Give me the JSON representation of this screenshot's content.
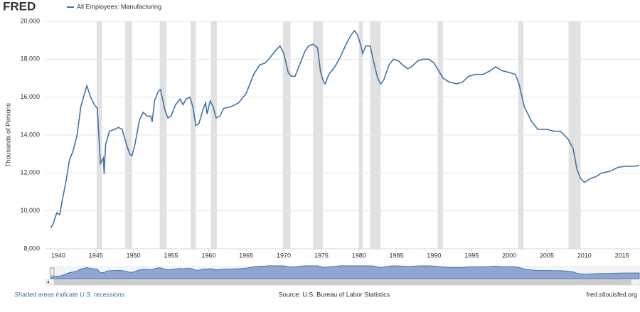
{
  "chart_data": {
    "type": "line",
    "brand": "FRED",
    "y_label": "Thousands of Persons",
    "note": "Shaded areas indicate U.S. recessions",
    "source": "Source: U.S. Bureau of Labor Statistics",
    "site": "fred.stlouisfed.org",
    "x": [
      1939,
      1939.3,
      1939.8,
      1940.2,
      1940.5,
      1941,
      1941.5,
      1942,
      1942.5,
      1943,
      1943.5,
      1943.8,
      1944.3,
      1944.8,
      1945.2,
      1945.6,
      1946.0,
      1946.1,
      1946.3,
      1946.8,
      1947.5,
      1948,
      1948.5,
      1949,
      1949.5,
      1949.8,
      1950.2,
      1950.8,
      1951.3,
      1951.8,
      1952.3,
      1952.5,
      1952.8,
      1953.3,
      1953.6,
      1954.2,
      1954.6,
      1955,
      1955.6,
      1956.2,
      1956.6,
      1957,
      1957.5,
      1957.9,
      1958.3,
      1958.7,
      1959.3,
      1959.6,
      1959.8,
      1960.2,
      1960.6,
      1961.0,
      1961.5,
      1962,
      1963,
      1964,
      1965,
      1966,
      1966.8,
      1967.5,
      1968,
      1969,
      1969.5,
      1970,
      1970.6,
      1971,
      1971.5,
      1972,
      1972.8,
      1973.3,
      1973.9,
      1974.5,
      1974.9,
      1975.3,
      1975.5,
      1976,
      1976.8,
      1977.5,
      1978.3,
      1979,
      1979.4,
      1979.8,
      1980.2,
      1980.5,
      1980.9,
      1981.5,
      1982,
      1982.5,
      1982.9,
      1983.3,
      1984,
      1984.6,
      1985.3,
      1985.8,
      1986.5,
      1987,
      1987.8,
      1988.5,
      1989.3,
      1990,
      1990.6,
      1991.2,
      1992,
      1993,
      1993.8,
      1994.6,
      1995.5,
      1996.5,
      1997.5,
      1998.2,
      1999,
      2000,
      2000.8,
      2001.3,
      2002,
      2003,
      2003.8,
      2005,
      2006,
      2006.8,
      2007.8,
      2008.5,
      2009,
      2009.5,
      2010,
      2010.8,
      2011.5,
      2012.3,
      2013.5,
      2014.5,
      2015.5,
      2016.5,
      2017.3
    ],
    "series": [
      {
        "name": "All Employees: Manufacturing",
        "color": "#4572a7",
        "values": [
          9100,
          9300,
          9900,
          9800,
          10500,
          11500,
          12700,
          13200,
          14000,
          15500,
          16200,
          16600,
          16000,
          15600,
          15400,
          12500,
          12800,
          11950,
          13500,
          14200,
          14300,
          14400,
          14300,
          13600,
          13000,
          12900,
          13500,
          14800,
          15200,
          15000,
          15000,
          14700,
          15800,
          16300,
          16400,
          15300,
          14900,
          15000,
          15600,
          15900,
          15600,
          15900,
          16000,
          15500,
          14500,
          14600,
          15400,
          15700,
          15100,
          15800,
          15500,
          14900,
          15000,
          15400,
          15500,
          15700,
          16200,
          17200,
          17700,
          17800,
          18000,
          18500,
          18700,
          18300,
          17300,
          17100,
          17100,
          17600,
          18400,
          18700,
          18800,
          18600,
          17300,
          16800,
          16700,
          17200,
          17600,
          18100,
          18800,
          19300,
          19500,
          19300,
          18800,
          18300,
          18700,
          18700,
          17800,
          17000,
          16700,
          16900,
          17700,
          18000,
          17900,
          17700,
          17500,
          17600,
          17900,
          18000,
          18000,
          17800,
          17400,
          17000,
          16800,
          16700,
          16800,
          17100,
          17200,
          17200,
          17400,
          17600,
          17400,
          17300,
          17200,
          16700,
          15500,
          14700,
          14300,
          14300,
          14200,
          14200,
          13800,
          13300,
          12200,
          11700,
          11500,
          11700,
          11800,
          12000,
          12100,
          12300,
          12350,
          12350,
          12400
        ]
      }
    ],
    "recessions": [
      [
        1945.1,
        1945.8
      ],
      [
        1948.9,
        1949.8
      ],
      [
        1953.5,
        1954.4
      ],
      [
        1957.6,
        1958.3
      ],
      [
        1960.3,
        1961.1
      ],
      [
        1969.9,
        1970.9
      ],
      [
        1973.9,
        1975.2
      ],
      [
        1980.0,
        1980.5
      ],
      [
        1981.5,
        1982.9
      ],
      [
        1990.5,
        1991.2
      ],
      [
        2001.2,
        2001.9
      ],
      [
        2007.9,
        2009.5
      ]
    ],
    "recession_color": "#e1e1e1",
    "xlim": [
      1938.3,
      2017.4
    ],
    "xticks": [
      1940,
      1945,
      1950,
      1955,
      1960,
      1965,
      1970,
      1975,
      1980,
      1985,
      1990,
      1995,
      2000,
      2005,
      2010,
      2015
    ],
    "ylim": [
      8000,
      20000
    ],
    "yticks": [
      {
        "value": 8000,
        "label": "8,000"
      },
      {
        "value": 10000,
        "label": "10,000"
      },
      {
        "value": 12000,
        "label": "12,000"
      },
      {
        "value": 14000,
        "label": "14,000"
      },
      {
        "value": 16000,
        "label": "16,000"
      },
      {
        "value": 18000,
        "label": "18,000"
      },
      {
        "value": 20000,
        "label": "20,000"
      }
    ],
    "grid": true
  }
}
